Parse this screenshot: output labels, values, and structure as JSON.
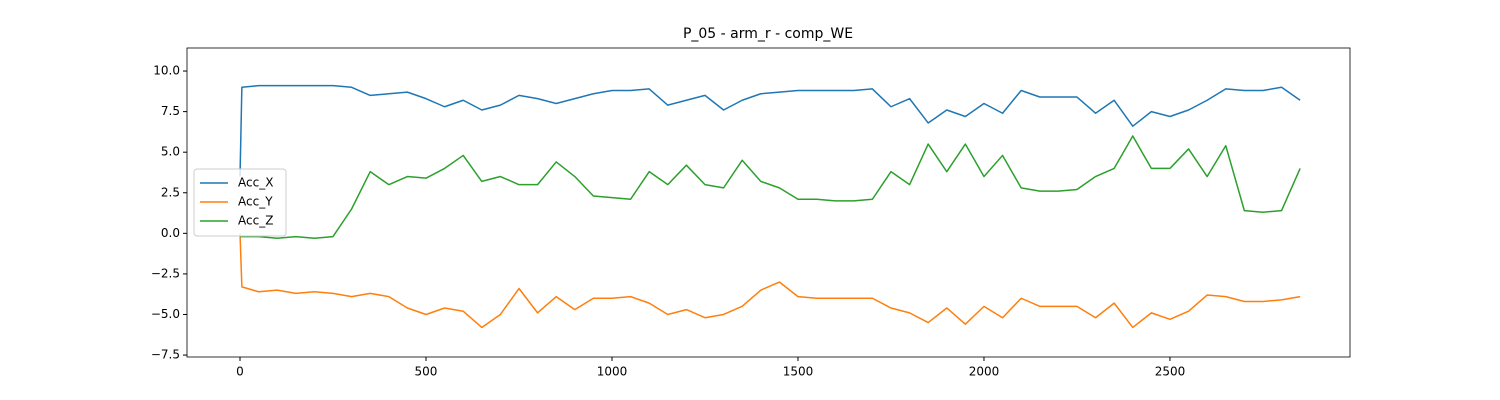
{
  "chart_data": {
    "type": "line",
    "title": "P_05 - arm_r - comp_WE",
    "x": [
      0,
      5,
      50,
      100,
      150,
      200,
      250,
      300,
      350,
      400,
      450,
      500,
      550,
      600,
      650,
      700,
      750,
      800,
      850,
      900,
      950,
      1000,
      1050,
      1100,
      1150,
      1200,
      1250,
      1300,
      1350,
      1400,
      1450,
      1500,
      1550,
      1600,
      1650,
      1700,
      1750,
      1800,
      1850,
      1900,
      1950,
      2000,
      2050,
      2100,
      2150,
      2200,
      2250,
      2300,
      2350,
      2400,
      2450,
      2500,
      2550,
      2600,
      2650,
      2700,
      2750,
      2800,
      2850
    ],
    "series": [
      {
        "name": "Acc_X",
        "color": "#1f77b4",
        "values": [
          3.5,
          9.0,
          9.1,
          9.1,
          9.1,
          9.1,
          9.1,
          9.0,
          8.5,
          8.6,
          8.7,
          8.3,
          7.8,
          8.2,
          7.6,
          7.9,
          8.5,
          8.3,
          8.0,
          8.3,
          8.6,
          8.8,
          8.8,
          8.9,
          7.9,
          8.2,
          8.5,
          7.6,
          8.2,
          8.6,
          8.7,
          8.8,
          8.8,
          8.8,
          8.8,
          8.9,
          7.8,
          8.3,
          6.8,
          7.6,
          7.2,
          8.0,
          7.4,
          8.8,
          8.4,
          8.4,
          8.4,
          7.4,
          8.2,
          6.6,
          7.5,
          7.2,
          7.6,
          8.2,
          8.9,
          8.8,
          8.8,
          9.0,
          8.2
        ]
      },
      {
        "name": "Acc_Y",
        "color": "#ff7f0e",
        "values": [
          0.0,
          -3.3,
          -3.6,
          -3.5,
          -3.7,
          -3.6,
          -3.7,
          -3.9,
          -3.7,
          -3.9,
          -4.6,
          -5.0,
          -4.6,
          -4.8,
          -5.8,
          -5.0,
          -3.4,
          -4.9,
          -3.9,
          -4.7,
          -4.0,
          -4.0,
          -3.9,
          -4.3,
          -5.0,
          -4.7,
          -5.2,
          -5.0,
          -4.5,
          -3.5,
          -3.0,
          -3.9,
          -4.0,
          -4.0,
          -4.0,
          -4.0,
          -4.6,
          -4.9,
          -5.5,
          -4.6,
          -5.6,
          -4.5,
          -5.2,
          -4.0,
          -4.5,
          -4.5,
          -4.5,
          -5.2,
          -4.3,
          -5.8,
          -4.9,
          -5.3,
          -4.8,
          -3.8,
          -3.9,
          -4.2,
          -4.2,
          -4.1,
          -3.9
        ]
      },
      {
        "name": "Acc_Z",
        "color": "#2ca02c",
        "values": [
          -0.2,
          -0.2,
          -0.2,
          -0.3,
          -0.2,
          -0.3,
          -0.2,
          1.5,
          3.8,
          3.0,
          3.5,
          3.4,
          4.0,
          4.8,
          3.2,
          3.5,
          3.0,
          3.0,
          4.4,
          3.5,
          2.3,
          2.2,
          2.1,
          3.8,
          3.0,
          4.2,
          3.0,
          2.8,
          4.5,
          3.2,
          2.8,
          2.1,
          2.1,
          2.0,
          2.0,
          2.1,
          3.8,
          3.0,
          5.5,
          3.8,
          5.5,
          3.5,
          4.8,
          2.8,
          2.6,
          2.6,
          2.7,
          3.5,
          4.0,
          6.0,
          4.0,
          4.0,
          5.2,
          3.5,
          5.4,
          1.4,
          1.3,
          1.4,
          4.0
        ]
      }
    ],
    "xlim": [
      -142.5,
      2984
    ],
    "xticks": [
      0,
      500,
      1000,
      1500,
      2000,
      2500
    ],
    "ylim": [
      -7.62,
      11.42
    ],
    "yticks": [
      {
        "value": -7.5,
        "label": "−7.5"
      },
      {
        "value": -5,
        "label": "−5.0"
      },
      {
        "value": -2.5,
        "label": "−2.5"
      },
      {
        "value": 0,
        "label": "0.0"
      },
      {
        "value": 2.5,
        "label": "2.5"
      },
      {
        "value": 5,
        "label": "5.0"
      },
      {
        "value": 7.5,
        "label": "7.5"
      },
      {
        "value": 10,
        "label": "10.0"
      }
    ],
    "legend": "center left"
  }
}
